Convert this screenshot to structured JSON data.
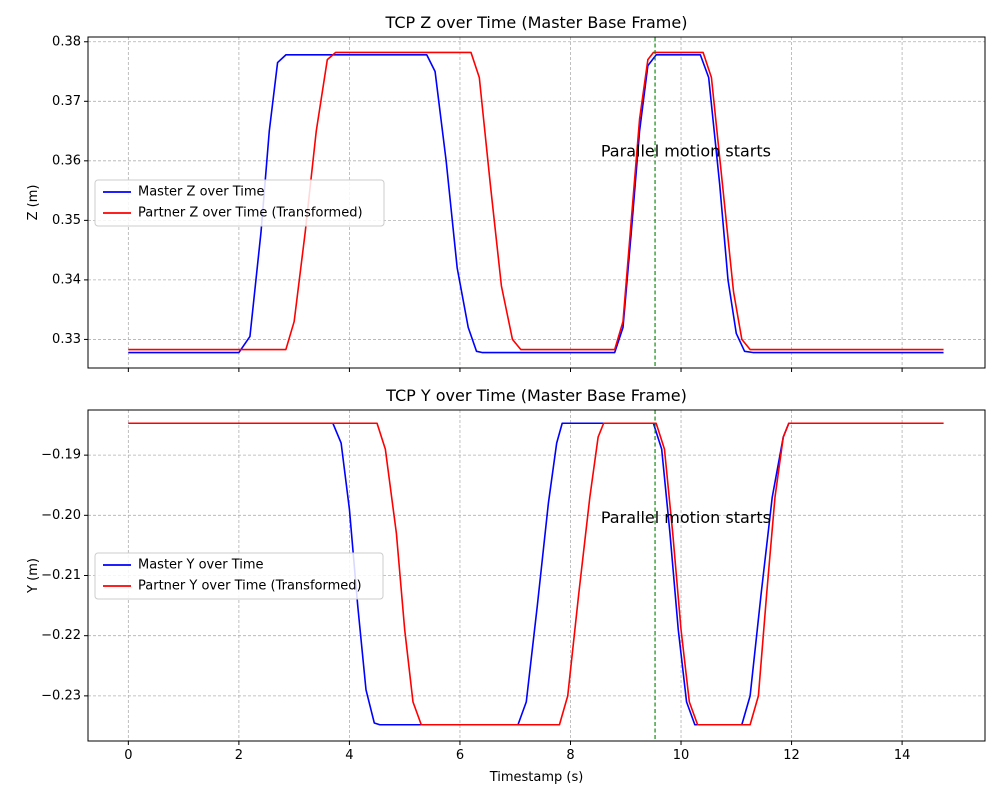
{
  "chart_data": [
    {
      "type": "line",
      "title": "TCP Z over Time (Master Base Frame)",
      "xlabel": "",
      "ylabel": "Z (m)",
      "xlim": [
        -0.73,
        15.5
      ],
      "ylim": [
        0.3252,
        0.3808
      ],
      "xticks": [
        0,
        2,
        4,
        6,
        8,
        10,
        12,
        14
      ],
      "xtick_labels": [
        "",
        "",
        "",
        "",
        "",
        "",
        "",
        ""
      ],
      "yticks": [
        0.33,
        0.34,
        0.35,
        0.36,
        0.37,
        0.38
      ],
      "ytick_labels": [
        "0.33",
        "0.34",
        "0.35",
        "0.36",
        "0.37",
        "0.38"
      ],
      "grid": true,
      "legend_position": "center-left",
      "vline": {
        "x": 9.53,
        "color": "#008000",
        "style": "dashed"
      },
      "annotation": {
        "text": "Parallel motion starts",
        "x": 8.55,
        "y": 0.3615
      },
      "series": [
        {
          "name": "Master Z over Time",
          "color": "#0000ff",
          "points": [
            [
              0,
              0.3278
            ],
            [
              2.0,
              0.3278
            ],
            [
              2.2,
              0.3305
            ],
            [
              2.4,
              0.348
            ],
            [
              2.55,
              0.365
            ],
            [
              2.7,
              0.3765
            ],
            [
              2.85,
              0.3778
            ],
            [
              5.4,
              0.3778
            ],
            [
              5.55,
              0.375
            ],
            [
              5.75,
              0.36
            ],
            [
              5.95,
              0.342
            ],
            [
              6.15,
              0.332
            ],
            [
              6.3,
              0.328
            ],
            [
              6.4,
              0.3278
            ],
            [
              8.8,
              0.3278
            ],
            [
              8.95,
              0.332
            ],
            [
              9.1,
              0.348
            ],
            [
              9.25,
              0.365
            ],
            [
              9.4,
              0.376
            ],
            [
              9.55,
              0.3778
            ],
            [
              10.35,
              0.3778
            ],
            [
              10.5,
              0.374
            ],
            [
              10.7,
              0.356
            ],
            [
              10.85,
              0.34
            ],
            [
              11.0,
              0.331
            ],
            [
              11.15,
              0.328
            ],
            [
              11.3,
              0.3278
            ],
            [
              14.75,
              0.3278
            ]
          ]
        },
        {
          "name": "Partner Z over Time (Transformed)",
          "color": "#ff0000",
          "points": [
            [
              0,
              0.3283
            ],
            [
              2.85,
              0.3283
            ],
            [
              3.0,
              0.333
            ],
            [
              3.2,
              0.348
            ],
            [
              3.4,
              0.365
            ],
            [
              3.6,
              0.377
            ],
            [
              3.75,
              0.3782
            ],
            [
              6.2,
              0.3782
            ],
            [
              6.35,
              0.374
            ],
            [
              6.55,
              0.356
            ],
            [
              6.75,
              0.339
            ],
            [
              6.95,
              0.33
            ],
            [
              7.1,
              0.3283
            ],
            [
              8.8,
              0.3283
            ],
            [
              8.95,
              0.333
            ],
            [
              9.1,
              0.35
            ],
            [
              9.25,
              0.367
            ],
            [
              9.4,
              0.377
            ],
            [
              9.5,
              0.3782
            ],
            [
              10.4,
              0.3782
            ],
            [
              10.55,
              0.374
            ],
            [
              10.75,
              0.356
            ],
            [
              10.95,
              0.338
            ],
            [
              11.1,
              0.33
            ],
            [
              11.25,
              0.3283
            ],
            [
              14.75,
              0.3283
            ]
          ]
        }
      ]
    },
    {
      "type": "line",
      "title": "TCP Y over Time (Master Base Frame)",
      "xlabel": "Timestamp (s)",
      "ylabel": "Y (m)",
      "xlim": [
        -0.73,
        15.5
      ],
      "ylim": [
        -0.2375,
        -0.1825
      ],
      "xticks": [
        0,
        2,
        4,
        6,
        8,
        10,
        12,
        14
      ],
      "xtick_labels": [
        "0",
        "2",
        "4",
        "6",
        "8",
        "10",
        "12",
        "14"
      ],
      "yticks": [
        -0.19,
        -0.2,
        -0.21,
        -0.22,
        -0.23
      ],
      "ytick_labels": [
        "−0.19",
        "−0.20",
        "−0.21",
        "−0.22",
        "−0.23"
      ],
      "grid": true,
      "legend_position": "center-left",
      "vline": {
        "x": 9.53,
        "color": "#008000",
        "style": "dashed"
      },
      "annotation": {
        "text": "Parallel motion starts",
        "x": 8.55,
        "y": -0.2005
      },
      "series": [
        {
          "name": "Master Y over Time",
          "color": "#0000ff",
          "points": [
            [
              0,
              -0.1847
            ],
            [
              3.7,
              -0.1847
            ],
            [
              3.85,
              -0.188
            ],
            [
              4.0,
              -0.199
            ],
            [
              4.15,
              -0.215
            ],
            [
              4.3,
              -0.229
            ],
            [
              4.45,
              -0.2345
            ],
            [
              4.55,
              -0.2348
            ],
            [
              7.05,
              -0.2348
            ],
            [
              7.2,
              -0.231
            ],
            [
              7.4,
              -0.215
            ],
            [
              7.6,
              -0.198
            ],
            [
              7.75,
              -0.188
            ],
            [
              7.85,
              -0.1847
            ],
            [
              9.5,
              -0.1847
            ],
            [
              9.65,
              -0.189
            ],
            [
              9.8,
              -0.203
            ],
            [
              9.95,
              -0.219
            ],
            [
              10.1,
              -0.231
            ],
            [
              10.25,
              -0.2348
            ],
            [
              11.1,
              -0.2348
            ],
            [
              11.25,
              -0.23
            ],
            [
              11.45,
              -0.213
            ],
            [
              11.65,
              -0.197
            ],
            [
              11.85,
              -0.187
            ],
            [
              11.95,
              -0.1847
            ],
            [
              14.75,
              -0.1847
            ]
          ]
        },
        {
          "name": "Partner Y over Time (Transformed)",
          "color": "#ff0000",
          "points": [
            [
              0,
              -0.1847
            ],
            [
              4.5,
              -0.1847
            ],
            [
              4.65,
              -0.189
            ],
            [
              4.85,
              -0.203
            ],
            [
              5.0,
              -0.219
            ],
            [
              5.15,
              -0.231
            ],
            [
              5.3,
              -0.2348
            ],
            [
              7.8,
              -0.2348
            ],
            [
              7.95,
              -0.23
            ],
            [
              8.15,
              -0.213
            ],
            [
              8.35,
              -0.197
            ],
            [
              8.5,
              -0.187
            ],
            [
              8.6,
              -0.1847
            ],
            [
              9.55,
              -0.1847
            ],
            [
              9.7,
              -0.189
            ],
            [
              9.85,
              -0.203
            ],
            [
              10.0,
              -0.219
            ],
            [
              10.15,
              -0.231
            ],
            [
              10.3,
              -0.2348
            ],
            [
              11.25,
              -0.2348
            ],
            [
              11.4,
              -0.23
            ],
            [
              11.55,
              -0.213
            ],
            [
              11.7,
              -0.197
            ],
            [
              11.85,
              -0.187
            ],
            [
              11.95,
              -0.1847
            ],
            [
              14.75,
              -0.1847
            ]
          ]
        }
      ]
    }
  ]
}
